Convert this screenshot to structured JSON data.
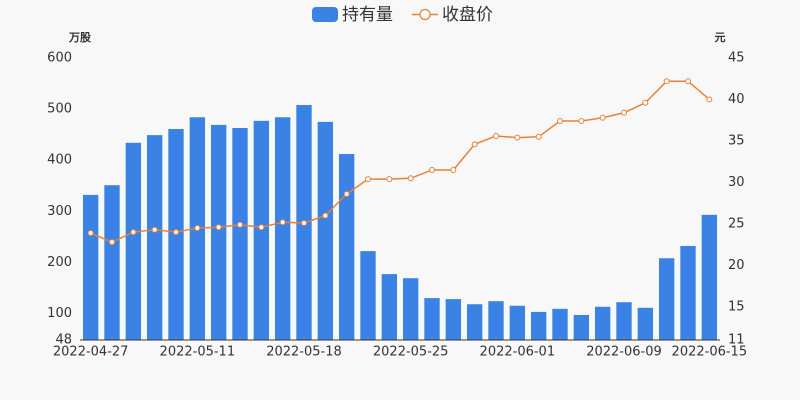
{
  "chart_data": {
    "type": "bar-line",
    "y_label": "万股",
    "y2_label": "元",
    "categories": [
      "2022-04-27",
      null,
      null,
      null,
      null,
      "2022-05-11",
      null,
      null,
      null,
      null,
      "2022-05-18",
      null,
      null,
      null,
      null,
      "2022-05-25",
      null,
      null,
      null,
      null,
      "2022-06-01",
      null,
      null,
      null,
      null,
      "2022-06-09",
      null,
      null,
      null,
      "2022-06-15"
    ],
    "series": [
      {
        "name": "持有量",
        "type": "bar",
        "color": "#3a82e4",
        "values": [
          332,
          351,
          434,
          449,
          461,
          484,
          469,
          463,
          477,
          484,
          508,
          475,
          412,
          222,
          177,
          169,
          130,
          128,
          118,
          124,
          115,
          103,
          109,
          97,
          113,
          122,
          111,
          208,
          232,
          293
        ]
      },
      {
        "name": "收盘价",
        "type": "line",
        "axis": "y2",
        "color": "#e8803a",
        "values": [
          23.9,
          22.8,
          24.0,
          24.3,
          24.0,
          24.5,
          24.6,
          24.9,
          24.6,
          25.2,
          25.1,
          26.0,
          28.6,
          30.4,
          30.4,
          30.5,
          31.5,
          31.5,
          34.6,
          35.6,
          35.4,
          35.5,
          37.4,
          37.4,
          37.8,
          38.4,
          39.6,
          42.2,
          42.2,
          40.0
        ]
      }
    ],
    "ylim": [
      48,
      600
    ],
    "yticks": [
      48,
      100,
      200,
      300,
      400,
      500,
      600
    ],
    "y2lim": [
      11,
      45
    ],
    "y2ticks": [
      11,
      15,
      20,
      25,
      30,
      35,
      40,
      45
    ],
    "legend": "top"
  }
}
